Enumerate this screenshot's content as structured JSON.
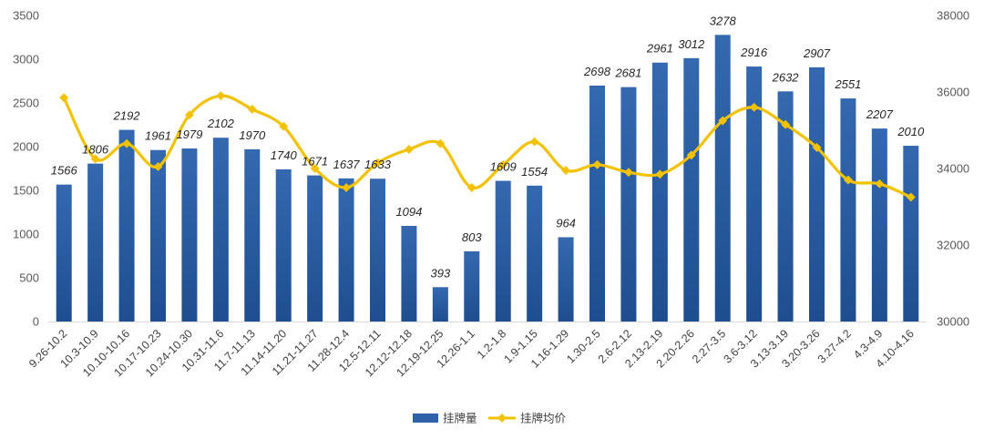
{
  "chart_data": {
    "type": "bar",
    "categories": [
      "9.26-10.2",
      "10.3-10.9",
      "10.10-10.16",
      "10.17-10.23",
      "10.24-10.30",
      "10.31-11.6",
      "11.7-11.13",
      "11.14-11.20",
      "11.21-11.27",
      "11.28-12.4",
      "12.5-12.11",
      "12.12-12.18",
      "12.19-12.25",
      "12.26-1.1",
      "1.2-1.8",
      "1.9-1.15",
      "1.16-1.29",
      "1.30-2.5",
      "2.6-2.12",
      "2.13-2.19",
      "2.20-2.26",
      "2.27-3.5",
      "3.6-3.12",
      "3.13-3.19",
      "3.20-3.26",
      "3.27-4.2",
      "4.3-4.9",
      "4.10-4.16"
    ],
    "series": [
      {
        "name": "挂牌量",
        "type": "bar",
        "axis": "left",
        "color": "#2E62A8",
        "values": [
          1566,
          1806,
          2192,
          1961,
          1979,
          2102,
          1970,
          1740,
          1671,
          1637,
          1633,
          1094,
          393,
          803,
          1609,
          1554,
          964,
          2698,
          2681,
          2961,
          3012,
          3278,
          2916,
          2632,
          2907,
          2551,
          2207,
          2010
        ]
      },
      {
        "name": "挂牌均价",
        "type": "line",
        "axis": "right",
        "color": "#F2C200",
        "values": [
          35850,
          34250,
          34650,
          34050,
          35400,
          35900,
          35550,
          35100,
          34000,
          33500,
          34150,
          34500,
          34650,
          33500,
          34100,
          34700,
          33950,
          34100,
          33900,
          33850,
          34350,
          35250,
          35600,
          35150,
          34550,
          33700,
          33600,
          33250
        ]
      }
    ],
    "left_axis": {
      "min": 0,
      "max": 3500,
      "ticks": [
        "0",
        "500",
        "1000",
        "1500",
        "2000",
        "2500",
        "3000",
        "3500"
      ]
    },
    "right_axis": {
      "min": 30000,
      "max": 38000,
      "ticks": [
        "30000",
        "32000",
        "34000",
        "36000",
        "38000"
      ]
    },
    "grid": false,
    "legend_position": "bottom",
    "data_labels": [
      "1566",
      "1806",
      "2192",
      "1961",
      "1979",
      "2102",
      "1970",
      "1740",
      "1671",
      "1637",
      "1633",
      "1094",
      "393",
      "803",
      "1609",
      "1554",
      "964",
      "2698",
      "2681",
      "2961",
      "3012",
      "3278",
      "2916",
      "2632",
      "2907",
      "2551",
      "2207",
      "2010"
    ]
  }
}
